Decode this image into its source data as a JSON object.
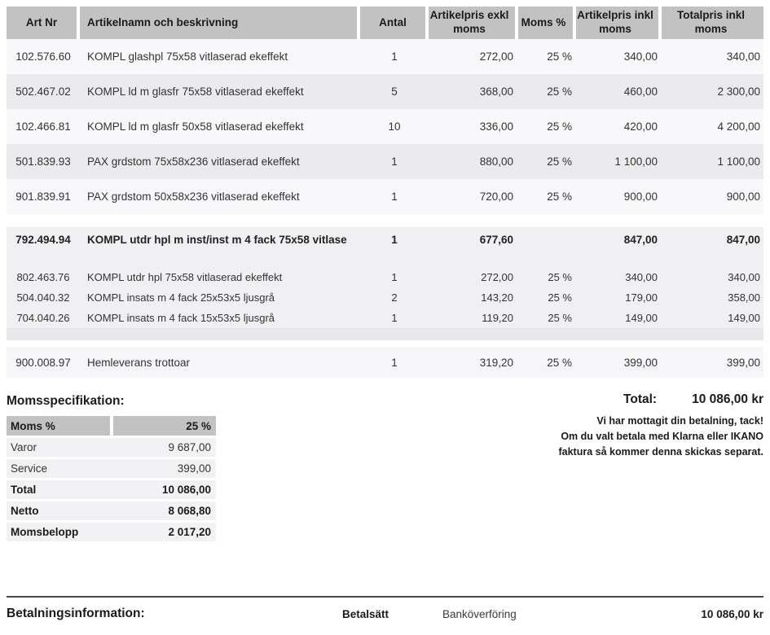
{
  "items_table": {
    "headers": {
      "art": "Art Nr",
      "name": "Artikelnamn och beskrivning",
      "qty": "Antal",
      "excl": "Artikelpris exkl moms",
      "vat": "Moms %",
      "incl": "Artikelpris inkl moms",
      "total": "Totalpris inkl moms"
    },
    "rows": [
      {
        "art": "102.576.60",
        "name": "KOMPL glashpl 75x58 vitlaserad ekeffekt",
        "qty": "1",
        "excl": "272,00",
        "vat": "25 %",
        "incl": "340,00",
        "total": "340,00"
      },
      {
        "art": "502.467.02",
        "name": "KOMPL ld m glasfr 75x58 vitlaserad ekeffekt",
        "qty": "5",
        "excl": "368,00",
        "vat": "25 %",
        "incl": "460,00",
        "total": "2 300,00"
      },
      {
        "art": "102.466.81",
        "name": "KOMPL ld m glasfr 50x58 vitlaserad ekeffekt",
        "qty": "10",
        "excl": "336,00",
        "vat": "25 %",
        "incl": "420,00",
        "total": "4 200,00"
      },
      {
        "art": "501.839.93",
        "name": "PAX grdstom 75x58x236 vitlaserad ekeffekt",
        "qty": "1",
        "excl": "880,00",
        "vat": "25 %",
        "incl": "1 100,00",
        "total": "1 100,00"
      },
      {
        "art": "901.839.91",
        "name": "PAX grdstom 50x58x236 vitlaserad ekeffekt",
        "qty": "1",
        "excl": "720,00",
        "vat": "25 %",
        "incl": "900,00",
        "total": "900,00"
      },
      {
        "art": "792.494.94",
        "name": "KOMPL utdr hpl m inst/inst m 4 fack 75x58 vitlase",
        "qty": "1",
        "excl": "677,60",
        "vat": "",
        "incl": "847,00",
        "total": "847,00"
      },
      {
        "art": "802.463.76",
        "name": "KOMPL utdr hpl 75x58 vitlaserad ekeffekt",
        "qty": "1",
        "excl": "272,00",
        "vat": "25 %",
        "incl": "340,00",
        "total": "340,00"
      },
      {
        "art": "504.040.32",
        "name": "KOMPL insats m 4 fack 25x53x5 ljusgrå",
        "qty": "2",
        "excl": "143,20",
        "vat": "25 %",
        "incl": "179,00",
        "total": "358,00"
      },
      {
        "art": "704.040.26",
        "name": "KOMPL insats m 4 fack 15x53x5 ljusgrå",
        "qty": "1",
        "excl": "119,20",
        "vat": "25 %",
        "incl": "149,00",
        "total": "149,00"
      },
      {
        "art": "900.008.97",
        "name": "Hemleverans trottoar",
        "qty": "1",
        "excl": "319,20",
        "vat": "25 %",
        "incl": "399,00",
        "total": "399,00"
      }
    ]
  },
  "vat_spec": {
    "title": "Momsspecifikation:",
    "header_label": "Moms %",
    "header_value": "25 %",
    "rows": [
      {
        "label": "Varor",
        "value": "9 687,00"
      },
      {
        "label": "Service",
        "value": "399,00"
      },
      {
        "label": "Total",
        "value": "10 086,00"
      },
      {
        "label": "Netto",
        "value": "8 068,80"
      },
      {
        "label": "Momsbelopp",
        "value": "2 017,20"
      }
    ]
  },
  "summary": {
    "total_label": "Total:",
    "total_value": "10 086,00 kr",
    "note_line1": "Vi har mottagit din betalning, tack!",
    "note_line2": "Om du valt betala med Klarna eller IKANO",
    "note_line3": "faktura så kommer denna skickas separat."
  },
  "payment": {
    "title": "Betalningsinformation:",
    "method_label": "Betalsätt",
    "method_value": "Banköverföring",
    "amount": "10 086,00 kr"
  },
  "colors": {
    "header_bg": "#c2c2c2",
    "row_light": "#f8f8fa",
    "row_alt": "#ebebee",
    "group_bg": "#f0f0f3",
    "divider": "#4a4a4a"
  }
}
